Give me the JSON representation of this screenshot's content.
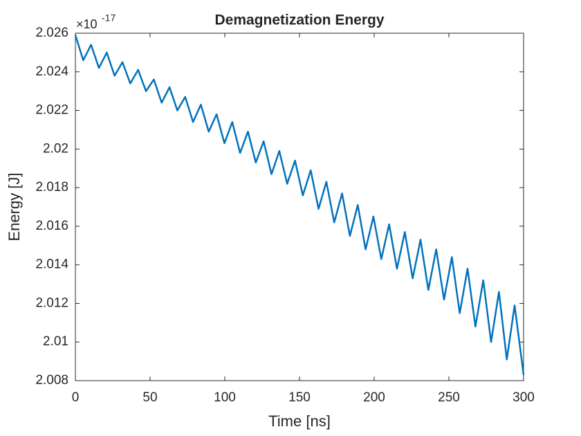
{
  "chart_data": {
    "type": "line",
    "title": "Demagnetization Energy",
    "xlabel": "Time [ns]",
    "ylabel": "Energy [J]",
    "y_multiplier": {
      "base": "×10",
      "exponent": "-17"
    },
    "color": "#0072BD",
    "grid": false,
    "xlim": [
      0,
      300
    ],
    "xticks": [
      0,
      50,
      100,
      150,
      200,
      250,
      300
    ],
    "ylim": [
      2.008,
      2.026
    ],
    "yticks": [
      2.008,
      2.01,
      2.012,
      2.014,
      2.016,
      2.018,
      2.02,
      2.022,
      2.024,
      2.026
    ],
    "x": [
      0,
      5.25,
      10.5,
      15.75,
      21,
      26.25,
      31.5,
      36.75,
      42,
      47.25,
      52.5,
      57.75,
      63,
      68.25,
      73.5,
      78.75,
      84,
      89.25,
      94.5,
      99.75,
      105,
      110.25,
      115.5,
      120.75,
      126,
      131.25,
      136.5,
      141.75,
      147,
      152.25,
      157.5,
      162.75,
      168,
      173.25,
      178.5,
      183.75,
      189,
      194.25,
      199.5,
      204.75,
      210,
      215.25,
      220.5,
      225.75,
      231,
      236.25,
      241.5,
      246.75,
      252,
      257.25,
      262.5,
      267.75,
      273,
      278.25,
      283.5,
      288.75,
      294,
      300
    ],
    "values": [
      2.0259,
      2.0246,
      2.0254,
      2.0242,
      2.025,
      2.0238,
      2.0245,
      2.0234,
      2.0241,
      2.023,
      2.0236,
      2.0224,
      2.0232,
      2.022,
      2.0227,
      2.0214,
      2.0223,
      2.0209,
      2.0218,
      2.0203,
      2.0214,
      2.0198,
      2.0209,
      2.0193,
      2.0204,
      2.0187,
      2.0199,
      2.0182,
      2.0194,
      2.0176,
      2.0189,
      2.0169,
      2.0183,
      2.0162,
      2.0177,
      2.0155,
      2.0171,
      2.0148,
      2.0165,
      2.0143,
      2.0161,
      2.0138,
      2.0157,
      2.0133,
      2.0153,
      2.0127,
      2.0148,
      2.0122,
      2.0144,
      2.0115,
      2.0138,
      2.0108,
      2.0132,
      2.01,
      2.0126,
      2.0091,
      2.0119,
      2.0083
    ]
  }
}
